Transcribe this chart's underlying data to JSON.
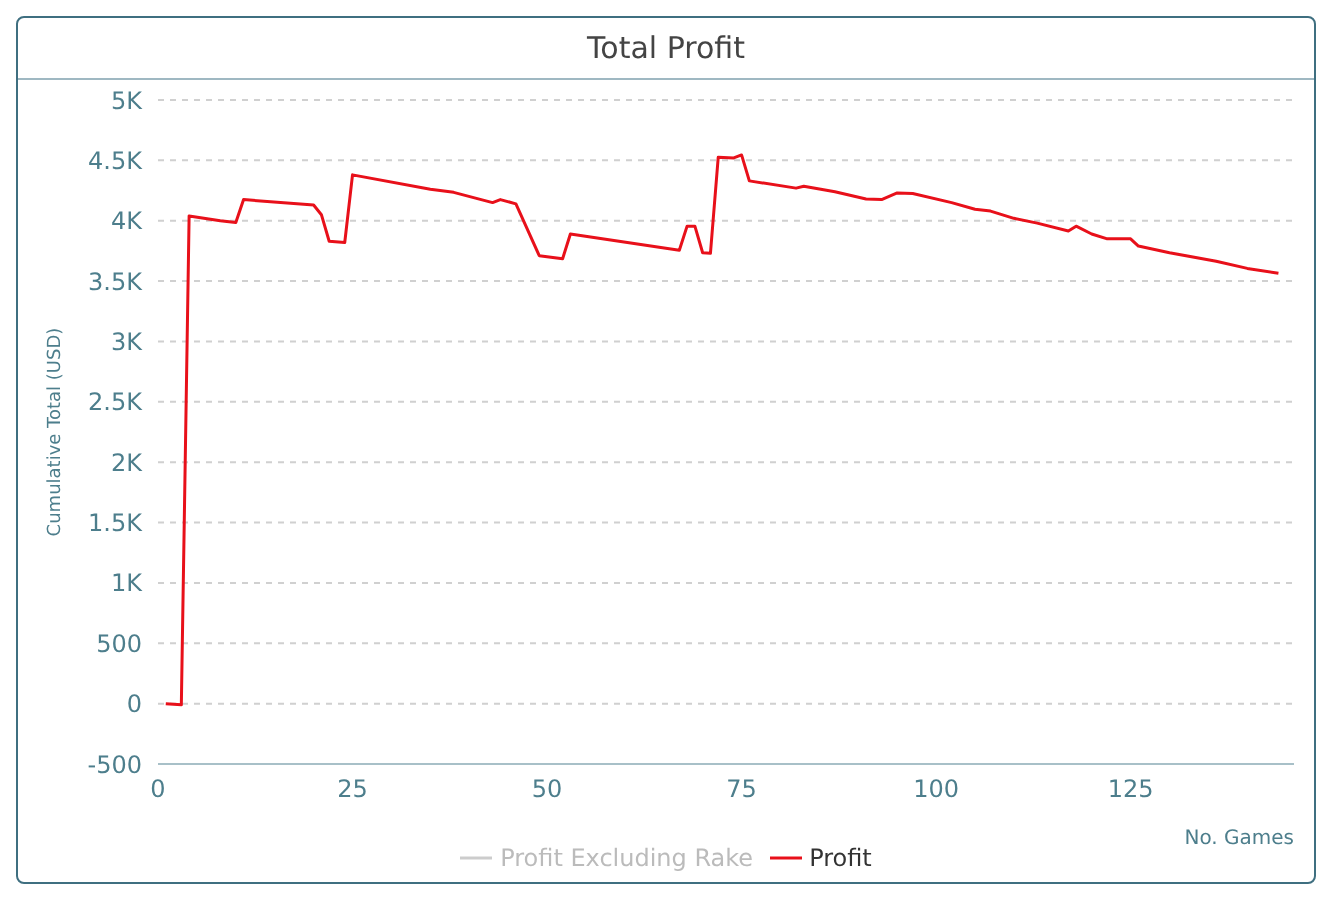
{
  "chart_data": {
    "type": "line",
    "title": "Total Profit",
    "xlabel": "No. Games",
    "ylabel": "Cumulative Total (USD)",
    "x": [
      1,
      3,
      4,
      8,
      10,
      11,
      20,
      21,
      22,
      24,
      25,
      35,
      38,
      43,
      44,
      46,
      49,
      52,
      53,
      67,
      68,
      69,
      70,
      71,
      72,
      74,
      75,
      76,
      82,
      83,
      87,
      91,
      93,
      95,
      97,
      102,
      105,
      107,
      110,
      113,
      117,
      118,
      120,
      122,
      125,
      126,
      130,
      136,
      140,
      144
    ],
    "series": [
      {
        "name": "Profit Excluding Rake",
        "color": "#cccccc",
        "values": [
          null,
          null,
          null,
          null,
          null,
          null,
          null,
          null,
          null,
          null,
          null,
          null,
          null,
          null,
          null,
          null,
          null,
          null,
          null,
          null,
          null,
          null,
          null,
          null,
          null,
          null,
          null,
          null,
          null,
          null,
          null,
          null,
          null,
          null,
          null,
          null,
          null,
          null,
          null,
          null,
          null,
          null,
          null,
          null,
          null,
          null,
          null,
          null,
          null,
          null
        ]
      },
      {
        "name": "Profit",
        "color": "#e8101a",
        "values": [
          0,
          -10,
          4040,
          4000,
          3985,
          4175,
          4130,
          4050,
          3830,
          3820,
          4380,
          4260,
          4235,
          4150,
          4175,
          4140,
          3710,
          3685,
          3890,
          3755,
          3955,
          3955,
          3735,
          3730,
          4525,
          4520,
          4545,
          4330,
          4270,
          4285,
          4240,
          4180,
          4175,
          4230,
          4225,
          4150,
          4095,
          4080,
          4020,
          3980,
          3915,
          3955,
          3890,
          3850,
          3850,
          3790,
          3735,
          3665,
          3605,
          3565
        ]
      }
    ],
    "xlim": [
      0,
      146
    ],
    "xticks": [
      0,
      25,
      50,
      75,
      100,
      125
    ],
    "ylim": [
      -500,
      5000
    ],
    "yticks": [
      -500,
      0,
      500,
      {
        "value": 1000,
        "label": "1K"
      },
      {
        "value": 1500,
        "label": "1.5K"
      },
      {
        "value": 2000,
        "label": "2K"
      },
      {
        "value": 2500,
        "label": "2.5K"
      },
      {
        "value": 3000,
        "label": "3K"
      },
      {
        "value": 3500,
        "label": "3.5K"
      },
      {
        "value": 4000,
        "label": "4K"
      },
      {
        "value": 4500,
        "label": "4.5K"
      },
      {
        "value": 5000,
        "label": "5K"
      }
    ],
    "grid": "y",
    "legend": "bottom",
    "marker": "none",
    "line_style": "solid"
  }
}
